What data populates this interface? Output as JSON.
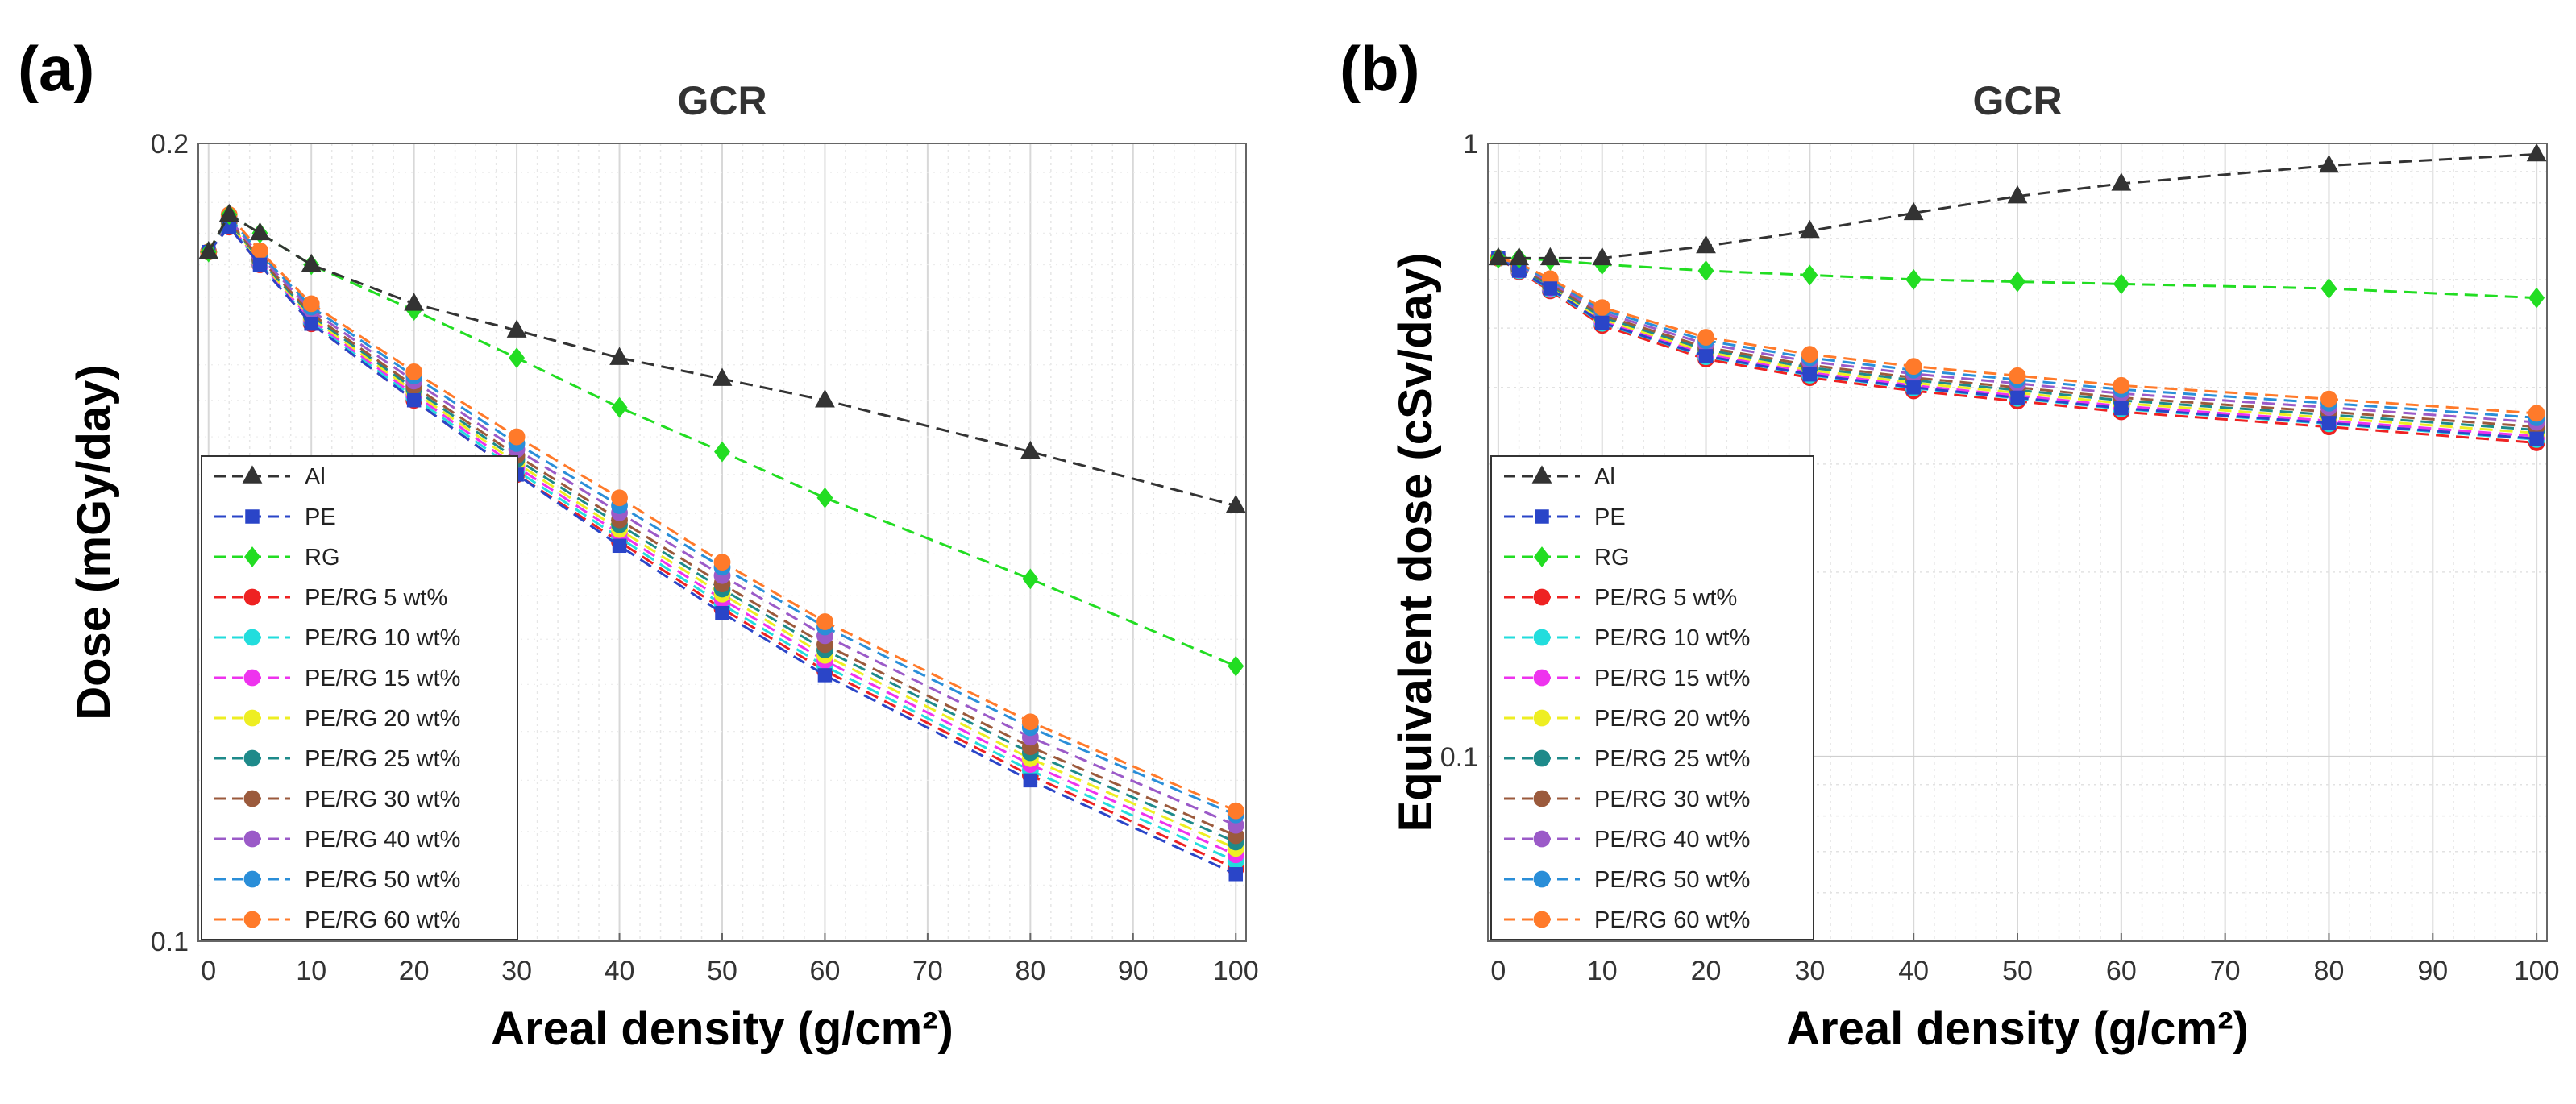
{
  "colors": {
    "Al": "#333333",
    "PE": "#2a45c8",
    "RG": "#22dd22",
    "PE/RG 5 wt%": "#ee2222",
    "PE/RG 10 wt%": "#22dddd",
    "PE/RG 15 wt%": "#ee33ee",
    "PE/RG 20 wt%": "#eeee22",
    "PE/RG 25 wt%": "#1e8a8a",
    "PE/RG 30 wt%": "#9b5a3c",
    "PE/RG 40 wt%": "#9b5ac8",
    "PE/RG 50 wt%": "#2a8ed8",
    "PE/RG 60 wt%": "#ff7a2a"
  },
  "chart_data": [
    {
      "panel_label": "(a)",
      "type": "line",
      "title": "GCR",
      "xlabel": "Areal density (g/cm²)",
      "ylabel": "Dose (mGy/day)",
      "yscale": "log",
      "xlim": [
        -1,
        101
      ],
      "ylim": [
        0.1,
        0.2
      ],
      "grid": true,
      "legend_position": "lower-left",
      "xticks": [
        "0",
        "10",
        "20",
        "30",
        "40",
        "50",
        "60",
        "70",
        "80",
        "90",
        "100"
      ],
      "yticks": [
        "0.1",
        "0.2"
      ],
      "x": [
        0,
        2,
        5,
        10,
        20,
        30,
        40,
        50,
        60,
        80,
        100
      ],
      "series": [
        {
          "name": "Al",
          "marker": "triangle",
          "values": [
            0.182,
            0.188,
            0.185,
            0.18,
            0.174,
            0.17,
            0.166,
            0.163,
            0.16,
            0.153,
            0.146
          ]
        },
        {
          "name": "PE",
          "marker": "square",
          "values": [
            0.182,
            0.186,
            0.18,
            0.171,
            0.16,
            0.15,
            0.141,
            0.133,
            0.126,
            0.115,
            0.106
          ]
        },
        {
          "name": "RG",
          "marker": "diamond",
          "values": [
            0.182,
            0.188,
            0.185,
            0.18,
            0.173,
            0.166,
            0.159,
            0.153,
            0.147,
            0.137,
            0.127
          ]
        },
        {
          "name": "PE/RG 5 wt%",
          "marker": "circle",
          "values": [
            0.182,
            0.186,
            0.18,
            0.171,
            0.16,
            0.15,
            0.1415,
            0.1335,
            0.1265,
            0.1155,
            0.1065
          ]
        },
        {
          "name": "PE/RG 10 wt%",
          "marker": "circle",
          "values": [
            0.182,
            0.1862,
            0.1802,
            0.1713,
            0.1604,
            0.1505,
            0.142,
            0.134,
            0.127,
            0.116,
            0.1072
          ]
        },
        {
          "name": "PE/RG 15 wt%",
          "marker": "circle",
          "values": [
            0.182,
            0.1864,
            0.1804,
            0.1716,
            0.1608,
            0.151,
            0.1425,
            0.1346,
            0.1276,
            0.1166,
            0.1078
          ]
        },
        {
          "name": "PE/RG 20 wt%",
          "marker": "circle",
          "values": [
            0.182,
            0.1866,
            0.1806,
            0.1719,
            0.1612,
            0.1515,
            0.143,
            0.1352,
            0.1282,
            0.1172,
            0.1084
          ]
        },
        {
          "name": "PE/RG 25 wt%",
          "marker": "circle",
          "values": [
            0.182,
            0.1868,
            0.1808,
            0.1722,
            0.1616,
            0.152,
            0.1436,
            0.1358,
            0.1288,
            0.1178,
            0.109
          ]
        },
        {
          "name": "PE/RG 30 wt%",
          "marker": "circle",
          "values": [
            0.182,
            0.187,
            0.181,
            0.1725,
            0.162,
            0.1525,
            0.1442,
            0.1364,
            0.1294,
            0.1184,
            0.1096
          ]
        },
        {
          "name": "PE/RG 40 wt%",
          "marker": "circle",
          "values": [
            0.182,
            0.1873,
            0.1814,
            0.173,
            0.1627,
            0.1533,
            0.1451,
            0.1374,
            0.1304,
            0.1194,
            0.1106
          ]
        },
        {
          "name": "PE/RG 50 wt%",
          "marker": "circle",
          "values": [
            0.182,
            0.1876,
            0.1818,
            0.1735,
            0.1634,
            0.1541,
            0.146,
            0.1384,
            0.1314,
            0.1204,
            0.1116
          ]
        },
        {
          "name": "PE/RG 60 wt%",
          "marker": "circle",
          "values": [
            0.182,
            0.188,
            0.1822,
            0.174,
            0.164,
            0.155,
            0.147,
            0.139,
            0.132,
            0.121,
            0.112
          ]
        }
      ]
    },
    {
      "panel_label": "(b)",
      "type": "line",
      "title": "GCR",
      "xlabel": "Areal density (g/cm²)",
      "ylabel": "Equivalent dose (cSv/day)",
      "yscale": "log",
      "xlim": [
        -1,
        101
      ],
      "ylim": [
        0.05,
        1
      ],
      "grid": true,
      "legend_position": "lower-left",
      "xticks": [
        "0",
        "10",
        "20",
        "30",
        "40",
        "50",
        "60",
        "70",
        "80",
        "90",
        "100"
      ],
      "yticks": [
        "0.1",
        "1"
      ],
      "x": [
        0,
        2,
        5,
        10,
        20,
        30,
        40,
        50,
        60,
        80,
        100
      ],
      "series": [
        {
          "name": "Al",
          "marker": "triangle",
          "values": [
            0.65,
            0.65,
            0.65,
            0.65,
            0.68,
            0.72,
            0.77,
            0.82,
            0.86,
            0.92,
            0.96
          ]
        },
        {
          "name": "PE",
          "marker": "square",
          "values": [
            0.65,
            0.62,
            0.58,
            0.51,
            0.45,
            0.42,
            0.4,
            0.385,
            0.37,
            0.35,
            0.33
          ]
        },
        {
          "name": "RG",
          "marker": "diamond",
          "values": [
            0.65,
            0.65,
            0.645,
            0.635,
            0.62,
            0.61,
            0.6,
            0.595,
            0.59,
            0.58,
            0.56
          ]
        },
        {
          "name": "PE/RG 5 wt%",
          "marker": "circle",
          "values": [
            0.65,
            0.618,
            0.575,
            0.505,
            0.445,
            0.415,
            0.395,
            0.38,
            0.365,
            0.345,
            0.325
          ]
        },
        {
          "name": "PE/RG 10 wt%",
          "marker": "circle",
          "values": [
            0.65,
            0.62,
            0.578,
            0.509,
            0.449,
            0.419,
            0.399,
            0.384,
            0.369,
            0.349,
            0.329
          ]
        },
        {
          "name": "PE/RG 15 wt%",
          "marker": "circle",
          "values": [
            0.65,
            0.622,
            0.581,
            0.513,
            0.453,
            0.423,
            0.403,
            0.388,
            0.373,
            0.353,
            0.333
          ]
        },
        {
          "name": "PE/RG 20 wt%",
          "marker": "circle",
          "values": [
            0.65,
            0.624,
            0.584,
            0.517,
            0.457,
            0.427,
            0.407,
            0.392,
            0.377,
            0.357,
            0.337
          ]
        },
        {
          "name": "PE/RG 25 wt%",
          "marker": "circle",
          "values": [
            0.65,
            0.626,
            0.587,
            0.521,
            0.461,
            0.431,
            0.411,
            0.396,
            0.381,
            0.361,
            0.341
          ]
        },
        {
          "name": "PE/RG 30 wt%",
          "marker": "circle",
          "values": [
            0.65,
            0.628,
            0.59,
            0.525,
            0.465,
            0.435,
            0.415,
            0.4,
            0.385,
            0.365,
            0.345
          ]
        },
        {
          "name": "PE/RG 40 wt%",
          "marker": "circle",
          "values": [
            0.65,
            0.631,
            0.594,
            0.53,
            0.471,
            0.441,
            0.421,
            0.406,
            0.391,
            0.371,
            0.351
          ]
        },
        {
          "name": "PE/RG 50 wt%",
          "marker": "circle",
          "values": [
            0.65,
            0.634,
            0.598,
            0.535,
            0.477,
            0.447,
            0.427,
            0.412,
            0.397,
            0.377,
            0.357
          ]
        },
        {
          "name": "PE/RG 60 wt%",
          "marker": "circle",
          "values": [
            0.65,
            0.637,
            0.602,
            0.54,
            0.483,
            0.453,
            0.433,
            0.418,
            0.403,
            0.383,
            0.363
          ]
        }
      ]
    }
  ]
}
